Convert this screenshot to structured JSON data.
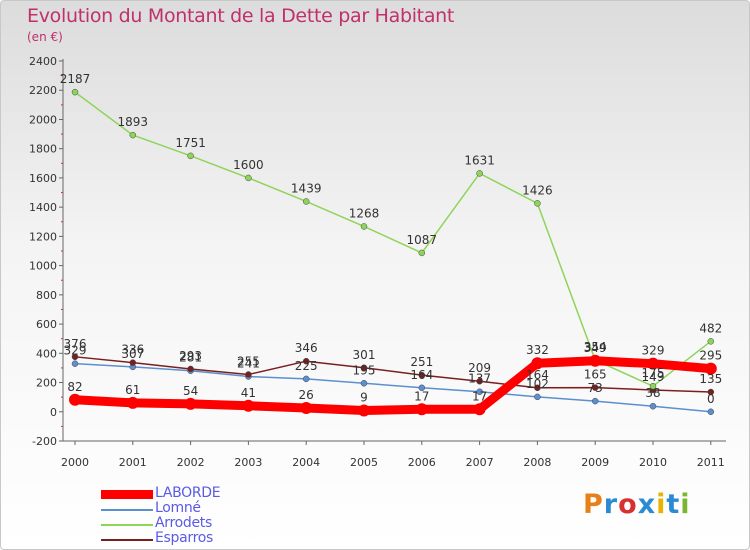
{
  "header": {
    "title": "Evolution du Montant de la Dette par Habitant",
    "subtitle": "(en €)"
  },
  "brand": {
    "letters": [
      "P",
      "r",
      "o",
      "x",
      "i",
      "t",
      "i"
    ],
    "colors": [
      "#e8801a",
      "#2a8ad4",
      "#d83030",
      "#2a8ad4",
      "#e8b400",
      "#2a8ad4",
      "#7ab62f"
    ]
  },
  "chart_data": {
    "type": "line",
    "title": "Evolution du Montant de la Dette par Habitant",
    "subtitle": "(en €)",
    "categories": [
      "2000",
      "2001",
      "2002",
      "2003",
      "2004",
      "2005",
      "2006",
      "2007",
      "2008",
      "2009",
      "2010",
      "2011"
    ],
    "ylim": [
      -200,
      2400
    ],
    "yticks": [
      -200,
      0,
      200,
      400,
      600,
      800,
      1000,
      1200,
      1400,
      1600,
      1800,
      2000,
      2200,
      2400
    ],
    "grid": false,
    "legend_position": "bottom-left",
    "series": [
      {
        "name": "Lomné",
        "color": "#5b8fd0",
        "values": [
          329,
          307,
          281,
          241,
          225,
          195,
          164,
          137,
          102,
          73,
          38,
          0
        ],
        "labels": [
          "329",
          "307",
          "281",
          "241",
          "225",
          "195",
          "164",
          "137",
          "102",
          "73",
          "38",
          "0"
        ]
      },
      {
        "name": "Esparros",
        "color": "#7a1f1f",
        "values": [
          376,
          336,
          293,
          255,
          346,
          301,
          251,
          209,
          164,
          165,
          149,
          135
        ],
        "labels": [
          "376",
          "336",
          "293",
          "255",
          "346",
          "301",
          "251",
          "209",
          "164",
          "165",
          "149",
          "135"
        ]
      },
      {
        "name": "Arrodets",
        "color": "#8ed45a",
        "values": [
          2187,
          1893,
          1751,
          1600,
          1439,
          1268,
          1087,
          1631,
          1426,
          354,
          175,
          482
        ],
        "labels": [
          "2187",
          "1893",
          "1751",
          "1600",
          "1439",
          "1268",
          "1087",
          "1631",
          "1426",
          "354",
          "175",
          "482"
        ]
      },
      {
        "name": "LABORDE",
        "color": "#ff0000",
        "values": [
          82,
          61,
          54,
          41,
          26,
          9,
          17,
          17,
          332,
          349,
          329,
          295
        ],
        "labels": [
          "82",
          "61",
          "54",
          "41",
          "26",
          "9",
          "17",
          "17",
          "332",
          "349",
          "329",
          "295"
        ]
      }
    ],
    "legend_order": [
      "LABORDE",
      "Lomné",
      "Arrodets",
      "Esparros"
    ]
  }
}
